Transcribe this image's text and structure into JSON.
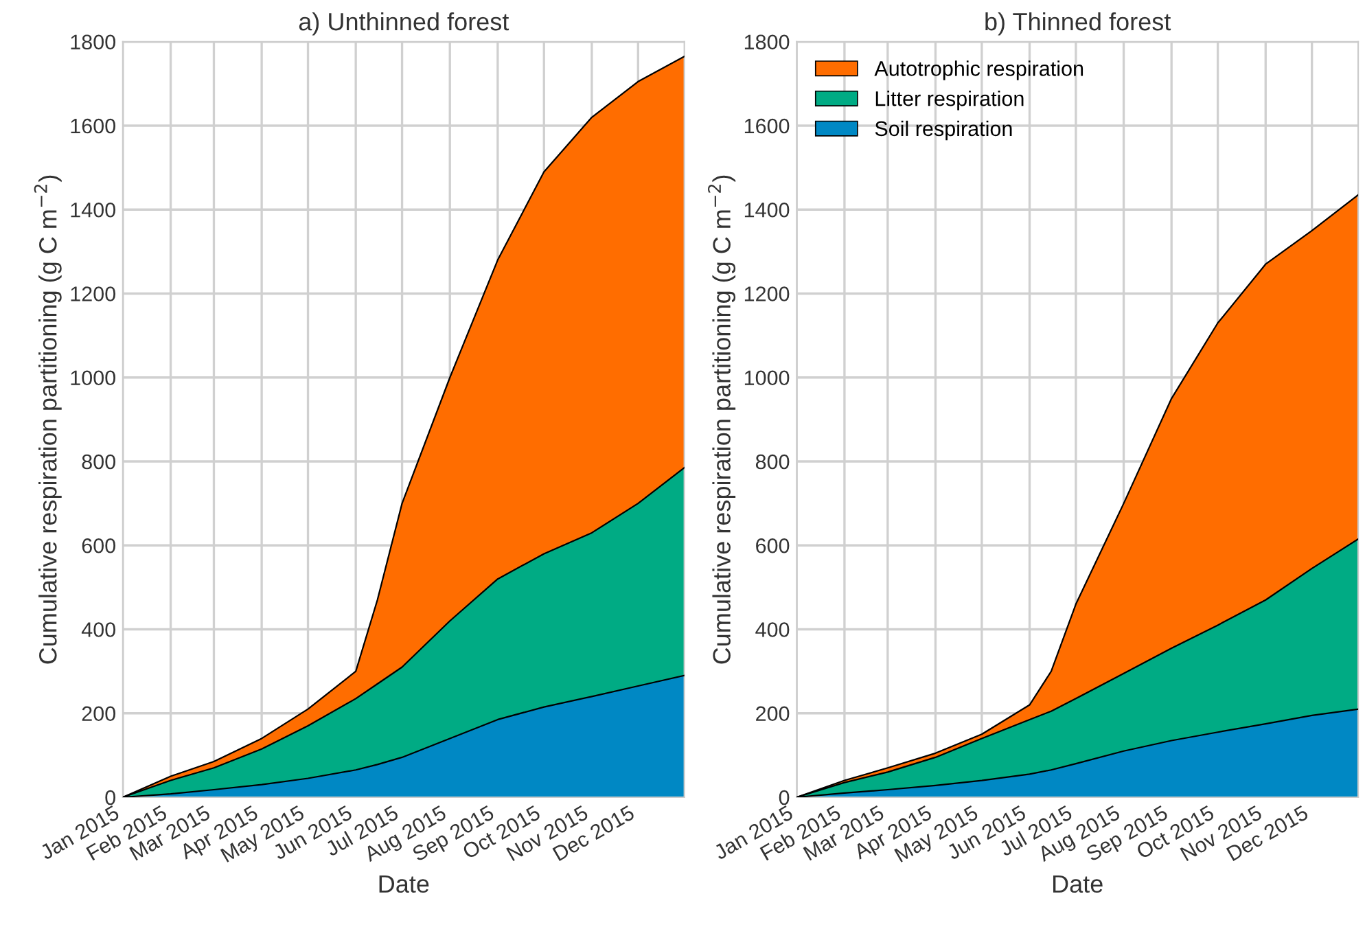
{
  "chart_data": [
    {
      "type": "area",
      "stacked": true,
      "title": "a) Unthinned forest",
      "xlabel": "Date",
      "ylabel": "Cumulative respiration partitioning (g C m$^{−2}$)",
      "x": [
        "2015-01-01",
        "2015-02-01",
        "2015-03-01",
        "2015-04-01",
        "2015-05-01",
        "2015-06-01",
        "2015-06-15",
        "2015-07-01",
        "2015-08-01",
        "2015-09-01",
        "2015-10-01",
        "2015-11-01",
        "2015-12-01",
        "2015-12-31"
      ],
      "series": [
        {
          "color": "#0088c4",
          "values": [
            0,
            8,
            18,
            30,
            45,
            65,
            78,
            95,
            140,
            185,
            215,
            240,
            265,
            290
          ]
        },
        {
          "color": "#00ab84",
          "values": [
            0,
            32,
            52,
            85,
            125,
            170,
            192,
            215,
            280,
            335,
            365,
            390,
            435,
            495
          ]
        },
        {
          "color": "#ff6d00",
          "values": [
            0,
            10,
            15,
            25,
            40,
            65,
            200,
            390,
            580,
            760,
            910,
            990,
            1005,
            980
          ]
        }
      ],
      "xlim": [
        "2015-01-01",
        "2015-12-31"
      ],
      "ylim": [
        0,
        1800
      ],
      "yticks": [
        0,
        200,
        400,
        600,
        800,
        1000,
        1200,
        1400,
        1600,
        1800
      ],
      "xticks": [
        {
          "value": "2015-01-01",
          "label": "Jan 2015"
        },
        {
          "value": "2015-02-01",
          "label": "Feb 2015"
        },
        {
          "value": "2015-03-01",
          "label": "Mar 2015"
        },
        {
          "value": "2015-04-01",
          "label": "Apr 2015"
        },
        {
          "value": "2015-05-01",
          "label": "May 2015"
        },
        {
          "value": "2015-06-01",
          "label": "Jun 2015"
        },
        {
          "value": "2015-07-01",
          "label": "Jul 2015"
        },
        {
          "value": "2015-08-01",
          "label": "Aug 2015"
        },
        {
          "value": "2015-09-01",
          "label": "Sep 2015"
        },
        {
          "value": "2015-10-01",
          "label": "Oct 2015"
        },
        {
          "value": "2015-11-01",
          "label": "Nov 2015"
        },
        {
          "value": "2015-12-01",
          "label": "Dec 2015"
        }
      ],
      "grid": true,
      "legend": false
    },
    {
      "type": "area",
      "stacked": true,
      "title": "b) Thinned forest",
      "xlabel": "Date",
      "ylabel": "Cumulative respiration partitioning (g C m$^{−2}$)",
      "x": [
        "2015-01-01",
        "2015-02-01",
        "2015-03-01",
        "2015-04-01",
        "2015-05-01",
        "2015-06-01",
        "2015-06-15",
        "2015-07-01",
        "2015-08-01",
        "2015-09-01",
        "2015-10-01",
        "2015-11-01",
        "2015-12-01",
        "2015-12-31"
      ],
      "series": [
        {
          "name": "Soil respiration",
          "color": "#0088c4",
          "values": [
            0,
            10,
            18,
            28,
            40,
            55,
            65,
            80,
            110,
            135,
            155,
            175,
            195,
            210
          ]
        },
        {
          "name": "Litter respiration",
          "color": "#00ab84",
          "values": [
            0,
            25,
            42,
            67,
            100,
            130,
            140,
            155,
            185,
            220,
            255,
            295,
            350,
            405
          ]
        },
        {
          "name": "Autotrophic respiration",
          "color": "#ff6d00",
          "values": [
            0,
            5,
            10,
            10,
            10,
            35,
            95,
            225,
            405,
            595,
            720,
            800,
            805,
            820
          ]
        }
      ],
      "xlim": [
        "2015-01-01",
        "2015-12-31"
      ],
      "ylim": [
        0,
        1800
      ],
      "yticks": [
        0,
        200,
        400,
        600,
        800,
        1000,
        1200,
        1400,
        1600,
        1800
      ],
      "xticks": [
        {
          "value": "2015-01-01",
          "label": "Jan 2015"
        },
        {
          "value": "2015-02-01",
          "label": "Feb 2015"
        },
        {
          "value": "2015-03-01",
          "label": "Mar 2015"
        },
        {
          "value": "2015-04-01",
          "label": "Apr 2015"
        },
        {
          "value": "2015-05-01",
          "label": "May 2015"
        },
        {
          "value": "2015-06-01",
          "label": "Jun 2015"
        },
        {
          "value": "2015-07-01",
          "label": "Jul 2015"
        },
        {
          "value": "2015-08-01",
          "label": "Aug 2015"
        },
        {
          "value": "2015-09-01",
          "label": "Sep 2015"
        },
        {
          "value": "2015-10-01",
          "label": "Oct 2015"
        },
        {
          "value": "2015-11-01",
          "label": "Nov 2015"
        },
        {
          "value": "2015-12-01",
          "label": "Dec 2015"
        }
      ],
      "grid": true,
      "legend": "top left"
    }
  ]
}
